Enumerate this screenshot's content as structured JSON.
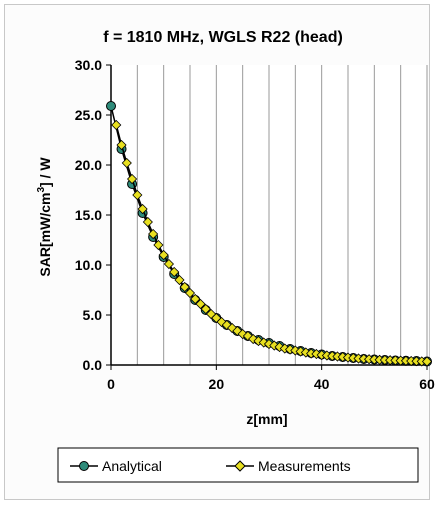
{
  "chart_data": {
    "type": "line",
    "title": "f = 1810 MHz, WGLS R22 (head)",
    "xlabel": "z[mm]",
    "ylabel_main": "SAR[mW/cm",
    "ylabel_sup": "3",
    "ylabel_tail": "] / W",
    "xlim": [
      0,
      60
    ],
    "ylim": [
      0,
      30
    ],
    "x_ticks": [
      "0",
      "20",
      "40",
      "60"
    ],
    "y_ticks": [
      "0.0",
      "5.0",
      "10.0",
      "15.0",
      "20.0",
      "25.0",
      "30.0"
    ],
    "grid": "vertical",
    "legend_position": "bottom",
    "colors": {
      "analytical": "#2e8b7a",
      "measurements": "#e8e020",
      "line": "#000000"
    },
    "series": [
      {
        "name": "Analytical",
        "x": [
          0,
          2,
          4,
          6,
          8,
          10,
          12,
          14,
          16,
          18,
          20,
          22,
          24,
          26,
          28,
          30,
          32,
          34,
          36,
          38,
          40,
          42,
          44,
          46,
          48,
          50,
          52,
          54,
          56,
          58,
          60
        ],
        "y": [
          25.9,
          21.6,
          18.1,
          15.2,
          12.8,
          10.8,
          9.1,
          7.7,
          6.5,
          5.5,
          4.7,
          4.0,
          3.4,
          2.9,
          2.5,
          2.2,
          1.9,
          1.6,
          1.4,
          1.2,
          1.05,
          0.9,
          0.8,
          0.7,
          0.6,
          0.55,
          0.5,
          0.45,
          0.42,
          0.4,
          0.35
        ]
      },
      {
        "name": "Measurements",
        "x": [
          1,
          2,
          3,
          4,
          5,
          6,
          7,
          8,
          9,
          10,
          11,
          12,
          13,
          14,
          15,
          16,
          17,
          18,
          19,
          20,
          21,
          22,
          23,
          24,
          25,
          26,
          27,
          28,
          29,
          30,
          31,
          32,
          33,
          34,
          35,
          36,
          37,
          38,
          39,
          40,
          41,
          42,
          43,
          44,
          45,
          46,
          47,
          48,
          49,
          50,
          51,
          52,
          53,
          54,
          55,
          56,
          57,
          58,
          59,
          60
        ],
        "y": [
          24.0,
          22.0,
          20.2,
          18.6,
          17.0,
          15.6,
          14.3,
          13.1,
          12.0,
          11.0,
          10.1,
          9.3,
          8.5,
          7.8,
          7.2,
          6.6,
          6.1,
          5.6,
          5.1,
          4.7,
          4.3,
          4.0,
          3.7,
          3.4,
          3.1,
          2.9,
          2.6,
          2.4,
          2.25,
          2.1,
          1.95,
          1.8,
          1.65,
          1.55,
          1.45,
          1.35,
          1.25,
          1.15,
          1.1,
          1.0,
          0.95,
          0.9,
          0.85,
          0.8,
          0.75,
          0.7,
          0.65,
          0.62,
          0.58,
          0.55,
          0.52,
          0.5,
          0.48,
          0.46,
          0.44,
          0.42,
          0.4,
          0.38,
          0.36,
          0.35
        ]
      }
    ]
  }
}
